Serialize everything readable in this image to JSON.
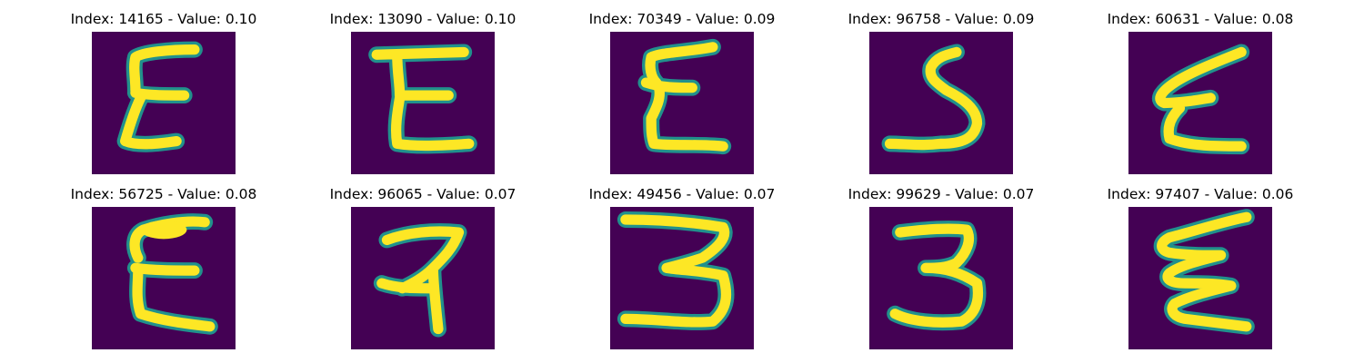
{
  "background_color": "#440154",
  "stroke_color_low": "#21918c",
  "stroke_color_mid": "#5ec962",
  "stroke_color_high": "#fde725",
  "panels": [
    {
      "title": "Index: 14165 - Value: 0.10",
      "glyph": "E"
    },
    {
      "title": "Index: 13090 - Value: 0.10",
      "glyph": "E"
    },
    {
      "title": "Index: 70349 - Value: 0.09",
      "glyph": "E"
    },
    {
      "title": "Index: 96758 - Value: 0.09",
      "glyph": "S"
    },
    {
      "title": "Index: 60631 - Value: 0.08",
      "glyph": "E"
    },
    {
      "title": "Index: 56725 - Value: 0.08",
      "glyph": "E"
    },
    {
      "title": "Index: 96065 - Value: 0.07",
      "glyph": "R"
    },
    {
      "title": "Index: 49456 - Value: 0.07",
      "glyph": "3"
    },
    {
      "title": "Index: 99629 - Value: 0.07",
      "glyph": "3"
    },
    {
      "title": "Index: 97407 - Value: 0.06",
      "glyph": "E"
    }
  ]
}
